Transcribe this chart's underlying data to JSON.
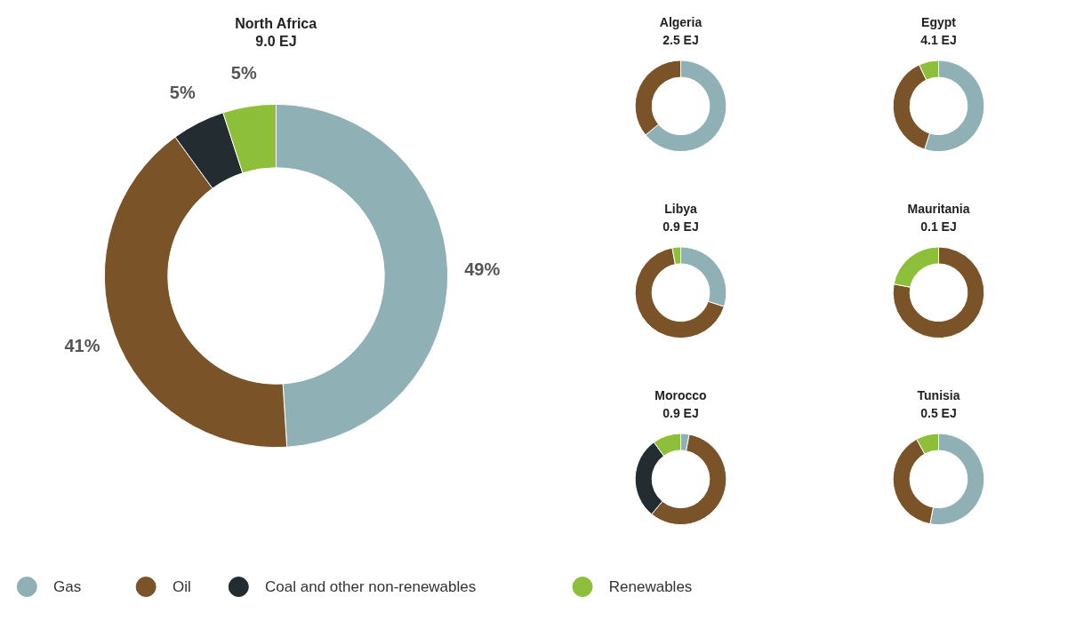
{
  "chart_data": [
    {
      "type": "donut",
      "title": "North Africa",
      "subtitle": "9.0 EJ",
      "categories": [
        "Gas",
        "Oil",
        "Coal and other non-renewables",
        "Renewables"
      ],
      "values": [
        49,
        41,
        5,
        5
      ],
      "value_labels": [
        "49%",
        "41%",
        "5%",
        "5%"
      ],
      "colors": [
        "#8fb0b5",
        "#7a5428",
        "#232c30",
        "#8dbf3a"
      ],
      "legend": "bottom"
    },
    {
      "type": "donut",
      "title": "Algeria",
      "subtitle": "2.5 EJ",
      "categories": [
        null,
        null,
        null,
        null
      ],
      "values": [
        64,
        36,
        0,
        0
      ],
      "colors": [
        "#8fb0b5",
        "#7a5428",
        "#232c30",
        "#8dbf3a"
      ]
    },
    {
      "type": "donut",
      "title": "Egypt",
      "subtitle": "4.1 EJ",
      "categories": [
        null,
        null,
        null,
        null
      ],
      "values": [
        55,
        38,
        0,
        7
      ],
      "colors": [
        "#8fb0b5",
        "#7a5428",
        "#232c30",
        "#8dbf3a"
      ]
    },
    {
      "type": "donut",
      "title": "Libya",
      "subtitle": "0.9 EJ",
      "categories": [
        null,
        null,
        null,
        null
      ],
      "values": [
        30,
        67,
        0,
        3
      ],
      "colors": [
        "#8fb0b5",
        "#7a5428",
        "#232c30",
        "#8dbf3a"
      ]
    },
    {
      "type": "donut",
      "title": "Mauritania",
      "subtitle": "0.1 EJ",
      "categories": [
        null,
        null,
        null,
        null
      ],
      "values": [
        0,
        78,
        0,
        22
      ],
      "colors": [
        "#8fb0b5",
        "#7a5428",
        "#232c30",
        "#8dbf3a"
      ]
    },
    {
      "type": "donut",
      "title": "Morocco",
      "subtitle": "0.9 EJ",
      "categories": [
        null,
        null,
        null,
        null
      ],
      "values": [
        3,
        58,
        29,
        10
      ],
      "colors": [
        "#8fb0b5",
        "#7a5428",
        "#232c30",
        "#8dbf3a"
      ]
    },
    {
      "type": "donut",
      "title": "Tunisia",
      "subtitle": "0.5 EJ",
      "categories": [
        null,
        null,
        null,
        null
      ],
      "values": [
        53,
        39,
        0,
        8
      ],
      "colors": [
        "#8fb0b5",
        "#7a5428",
        "#232c30",
        "#8dbf3a"
      ]
    }
  ]
}
